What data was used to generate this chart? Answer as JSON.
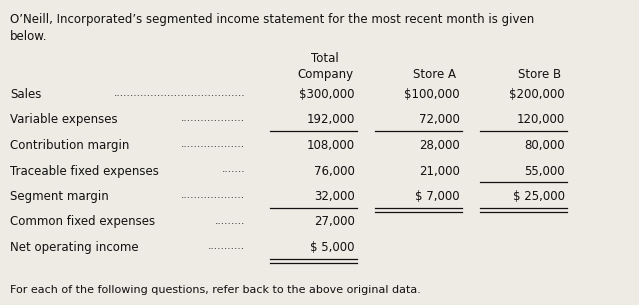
{
  "title_line1": "O’Neill, Incorporated’s segmented income statement for the most recent month is given",
  "title_line2": "below.",
  "footer": "For each of the following questions, refer back to the above original data.",
  "col_headers": [
    "Total\nCompany",
    "Store A",
    "Store B"
  ],
  "row_labels": [
    "Sales",
    "Variable expenses",
    "Contribution margin",
    "Traceable fixed expenses",
    "Segment margin",
    "Common fixed expenses",
    "Net operating income"
  ],
  "col_total": [
    "$300,000",
    "192,000",
    "108,000",
    "76,000",
    "32,000",
    "27,000",
    "$ 5,000"
  ],
  "col_store_a": [
    "$100,000",
    "72,000",
    "28,000",
    "21,000",
    "$ 7,000",
    "",
    ""
  ],
  "col_store_b": [
    "$200,000",
    "120,000",
    "80,000",
    "55,000",
    "$ 25,000",
    "",
    ""
  ],
  "underline_total": [
    1,
    4,
    6
  ],
  "underline_store_a": [
    1,
    4
  ],
  "underline_store_b": [
    1,
    3,
    4
  ],
  "double_underline_total": [
    6
  ],
  "double_underline_store_a": [
    4
  ],
  "double_underline_store_b": [
    4
  ],
  "bg_color": "#eeebe5",
  "text_color": "#111111",
  "font_size": 8.5
}
